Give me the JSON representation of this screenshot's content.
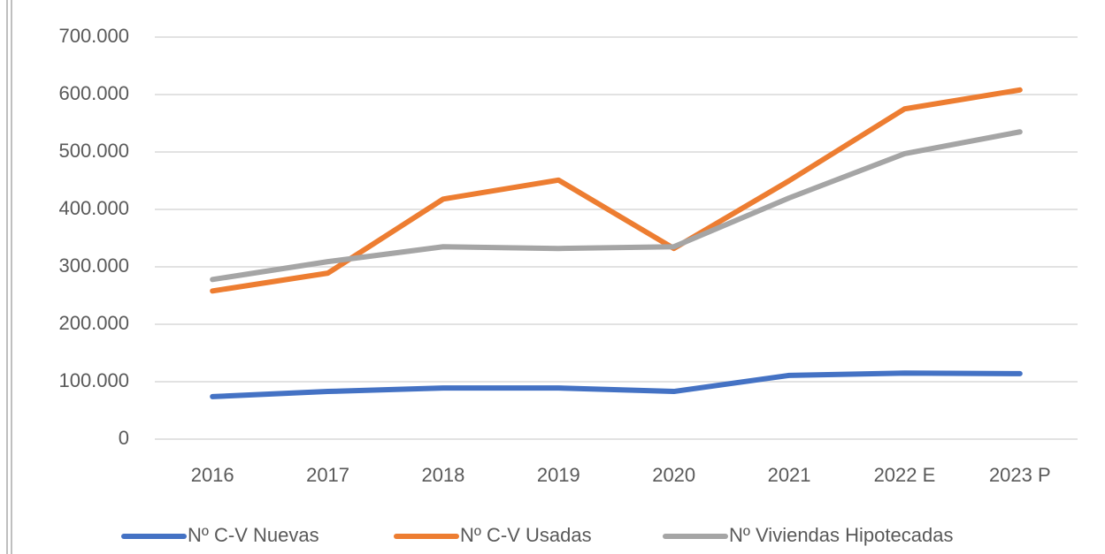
{
  "chart_data": {
    "type": "line",
    "categories": [
      "2016",
      "2017",
      "2018",
      "2019",
      "2020",
      "2021",
      "2022 E",
      "2023 P"
    ],
    "series": [
      {
        "name": "Nº C-V Nuevas",
        "color": "#4472c4",
        "values": [
          74000,
          83000,
          89000,
          89000,
          83000,
          111000,
          115000,
          114000
        ]
      },
      {
        "name": "Nº C-V Usadas",
        "color": "#ed7d31",
        "values": [
          258000,
          289000,
          418000,
          451000,
          332000,
          450000,
          575000,
          608000
        ]
      },
      {
        "name": "Nº Viviendas Hipotecadas",
        "color": "#a5a5a5",
        "values": [
          278000,
          309000,
          335000,
          332000,
          335000,
          420000,
          497000,
          535000
        ]
      }
    ],
    "ylim": [
      0,
      700000
    ],
    "yticks": [
      0,
      {
        "value": 100000,
        "label": "100.000"
      },
      {
        "value": 200000,
        "label": "200.000"
      },
      {
        "value": 300000,
        "label": "300.000"
      },
      {
        "value": 400000,
        "label": "400.000"
      },
      {
        "value": 500000,
        "label": "500.000"
      },
      {
        "value": 600000,
        "label": "600.000"
      },
      {
        "value": 700000,
        "label": "700.000"
      }
    ],
    "grid": true,
    "legend": "bottom"
  }
}
